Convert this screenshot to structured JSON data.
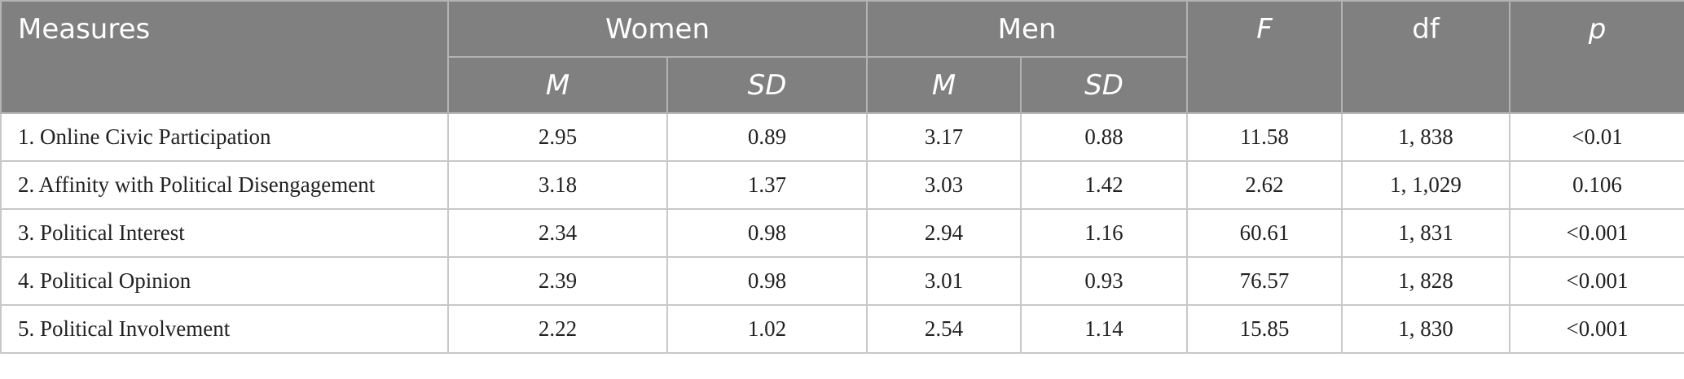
{
  "header": {
    "measures": "Measures",
    "women": "Women",
    "men": "Men",
    "f": "F",
    "df": "df",
    "p": "p",
    "m": "M",
    "sd": "SD"
  },
  "rows": [
    {
      "measure": "1. Online Civic Participation",
      "w_m": "2.95",
      "w_sd": "0.89",
      "m_m": "3.17",
      "m_sd": "0.88",
      "f": "11.58",
      "df": "1, 838",
      "p": "<0.01"
    },
    {
      "measure": "2. Affinity with Political Disengagement",
      "w_m": "3.18",
      "w_sd": "1.37",
      "m_m": "3.03",
      "m_sd": "1.42",
      "f": "2.62",
      "df": "1, 1,029",
      "p": "0.106"
    },
    {
      "measure": "3. Political Interest",
      "w_m": "2.34",
      "w_sd": "0.98",
      "m_m": "2.94",
      "m_sd": "1.16",
      "f": "60.61",
      "df": "1, 831",
      "p": "<0.001"
    },
    {
      "measure": "4. Political Opinion",
      "w_m": "2.39",
      "w_sd": "0.98",
      "m_m": "3.01",
      "m_sd": "0.93",
      "f": "76.57",
      "df": "1, 828",
      "p": "<0.001"
    },
    {
      "measure": "5. Political Involvement",
      "w_m": "2.22",
      "w_sd": "1.02",
      "m_m": "2.54",
      "m_sd": "1.14",
      "f": "15.85",
      "df": "1, 830",
      "p": "<0.001"
    }
  ]
}
